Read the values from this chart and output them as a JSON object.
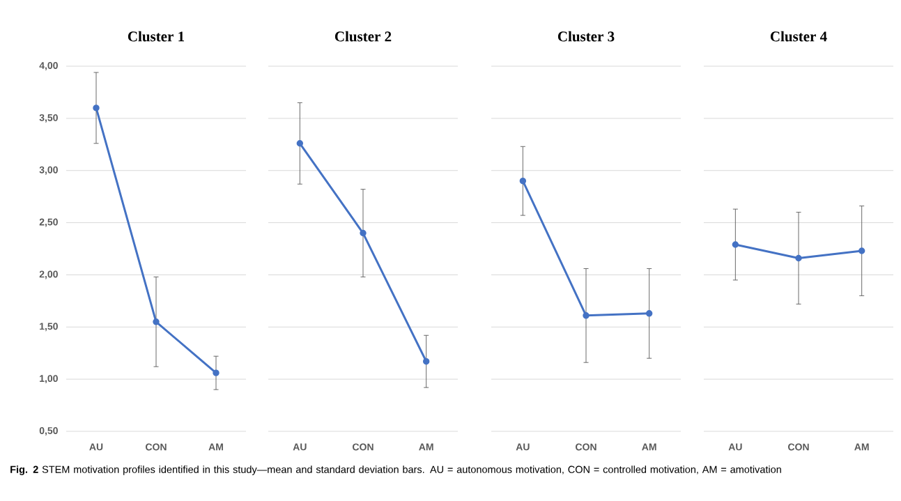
{
  "chart_data": [
    {
      "type": "line",
      "title": "Cluster 1",
      "categories": [
        "AU",
        "CON",
        "AM"
      ],
      "series": [
        {
          "color": "#4472c4",
          "values": [
            3.6,
            1.55,
            1.06
          ],
          "errors": [
            0.34,
            0.43,
            0.16
          ]
        }
      ],
      "ylim": [
        0.5,
        4
      ],
      "yticks": [
        {
          "value": 0.5,
          "label": "0,50"
        },
        {
          "value": 1,
          "label": "1,00"
        },
        {
          "value": 1.5,
          "label": "1,50"
        },
        {
          "value": 2,
          "label": "2,00"
        },
        {
          "value": 2.5,
          "label": "2,50"
        },
        {
          "value": 3,
          "label": "3,00"
        },
        {
          "value": 3.5,
          "label": "3,50"
        },
        {
          "value": 4,
          "label": "4,00"
        }
      ],
      "grid": "y",
      "marker": "circle",
      "annotations": [
        "**Fig. 2**  STEM motivation profiles identified in this study—mean and standard deviation bars. AU = autonomous motivation, CON = controlled motivation, AM = amotivation"
      ]
    },
    {
      "type": "line",
      "title": "Cluster 2",
      "categories": [
        "AU",
        "CON",
        "AM"
      ],
      "series": [
        {
          "color": "#4472c4",
          "values": [
            3.26,
            2.4,
            1.17
          ],
          "errors": [
            0.39,
            0.42,
            0.25
          ]
        }
      ],
      "ylim": [
        0.5,
        4
      ],
      "yticks": [
        {
          "value": 0.5,
          "label": null
        },
        {
          "value": 1,
          "label": null
        },
        {
          "value": 1.5,
          "label": null
        },
        {
          "value": 2,
          "label": null
        },
        {
          "value": 2.5,
          "label": null
        },
        {
          "value": 3,
          "label": null
        },
        {
          "value": 3.5,
          "label": null
        },
        {
          "value": 4,
          "label": null
        }
      ],
      "grid": "y",
      "marker": "circle",
      "tick_labels": "x"
    },
    {
      "type": "line",
      "title": "Cluster 3",
      "categories": [
        "AU",
        "CON",
        "AM"
      ],
      "series": [
        {
          "color": "#4472c4",
          "values": [
            2.9,
            1.61,
            1.63
          ],
          "errors": [
            0.33,
            0.45,
            0.43
          ]
        }
      ],
      "ylim": [
        0.5,
        4
      ],
      "yticks": [
        {
          "value": 0.5,
          "label": null
        },
        {
          "value": 1,
          "label": null
        },
        {
          "value": 1.5,
          "label": null
        },
        {
          "value": 2,
          "label": null
        },
        {
          "value": 2.5,
          "label": null
        },
        {
          "value": 3,
          "label": null
        },
        {
          "value": 3.5,
          "label": null
        },
        {
          "value": 4,
          "label": null
        }
      ],
      "grid": "y",
      "marker": "circle",
      "tick_labels": "x"
    },
    {
      "type": "line",
      "title": "Cluster 4",
      "categories": [
        "AU",
        "CON",
        "AM"
      ],
      "series": [
        {
          "color": "#4472c4",
          "values": [
            2.29,
            2.16,
            2.23
          ],
          "errors": [
            0.34,
            0.44,
            0.43
          ]
        }
      ],
      "ylim": [
        0.5,
        4
      ],
      "yticks": [
        {
          "value": 0.5,
          "label": null
        },
        {
          "value": 1,
          "label": null
        },
        {
          "value": 1.5,
          "label": null
        },
        {
          "value": 2,
          "label": null
        },
        {
          "value": 2.5,
          "label": null
        },
        {
          "value": 3,
          "label": null
        },
        {
          "value": 3.5,
          "label": null
        },
        {
          "value": 4,
          "label": null
        }
      ],
      "grid": "y",
      "marker": "circle",
      "tick_labels": "x"
    }
  ]
}
